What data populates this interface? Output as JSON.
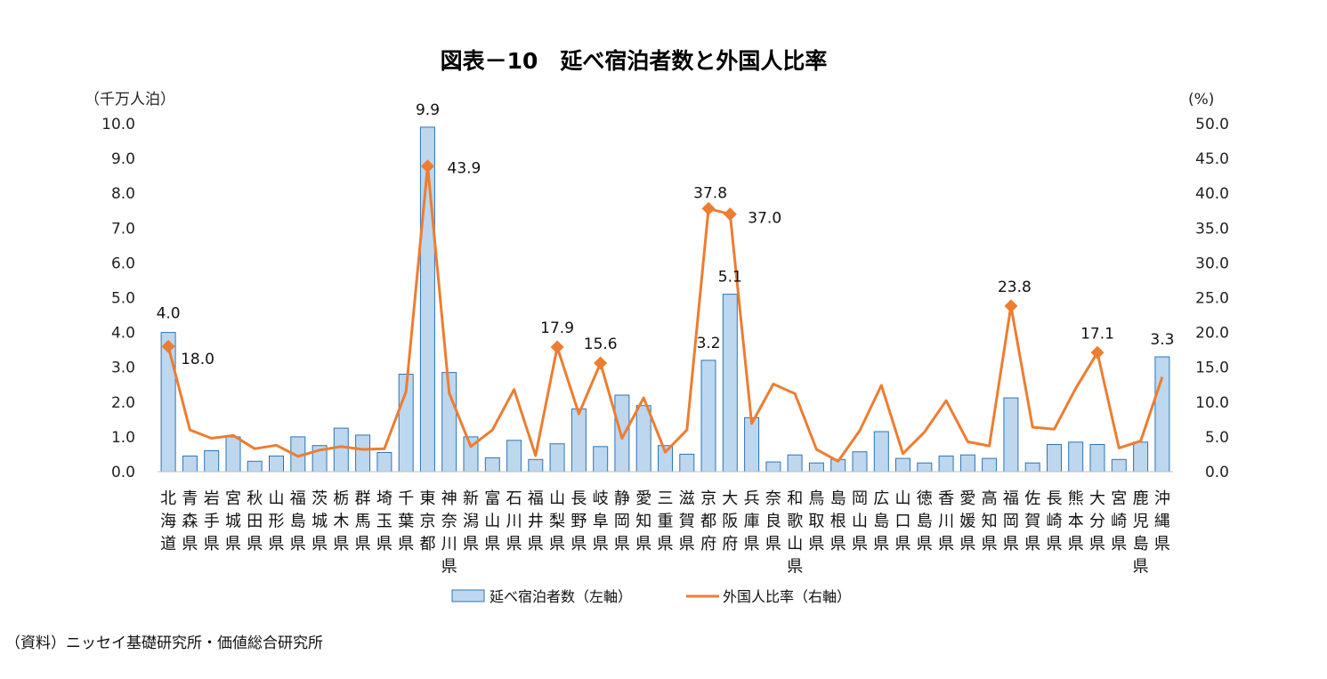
{
  "chart_data": {
    "type": "bar",
    "title": "図表－10　延べ宿泊者数と外国人比率",
    "y_left_unit": "（千万人泊）",
    "y_right_unit": "(%)",
    "y_left_ticks": [
      "0.0",
      "1.0",
      "2.0",
      "3.0",
      "4.0",
      "5.0",
      "6.0",
      "7.0",
      "8.0",
      "9.0",
      "10.0"
    ],
    "y_right_ticks": [
      "0.0",
      "5.0",
      "10.0",
      "15.0",
      "20.0",
      "25.0",
      "30.0",
      "35.0",
      "40.0",
      "45.0",
      "50.0"
    ],
    "ylim_left": [
      0,
      10
    ],
    "ylim_right": [
      0,
      50
    ],
    "grid": false,
    "legend_position": "bottom",
    "categories": [
      "北海道",
      "青森県",
      "岩手県",
      "宮城県",
      "秋田県",
      "山形県",
      "福島県",
      "茨城県",
      "栃木県",
      "群馬県",
      "埼玉県",
      "千葉県",
      "東京都",
      "神奈川県",
      "新潟県",
      "富山県",
      "石川県",
      "福井県",
      "山梨県",
      "長野県",
      "岐阜県",
      "静岡県",
      "愛知県",
      "三重県",
      "滋賀県",
      "京都府",
      "大阪府",
      "兵庫県",
      "奈良県",
      "和歌山県",
      "鳥取県",
      "島根県",
      "岡山県",
      "広島県",
      "山口県",
      "徳島県",
      "香川県",
      "愛媛県",
      "高知県",
      "福岡県",
      "佐賀県",
      "長崎県",
      "熊本県",
      "大分県",
      "宮崎県",
      "鹿児島県",
      "沖縄県"
    ],
    "series": [
      {
        "name": "延べ宿泊者数（左軸）",
        "type": "bar",
        "axis": "left",
        "color": "#BDD7EE",
        "stroke": "#2E75B6",
        "values": [
          4.0,
          0.45,
          0.6,
          1.0,
          0.3,
          0.45,
          1.0,
          0.75,
          1.25,
          1.05,
          0.55,
          2.8,
          9.9,
          2.85,
          1.0,
          0.4,
          0.9,
          0.35,
          0.8,
          1.8,
          0.72,
          2.2,
          1.9,
          0.75,
          0.5,
          3.2,
          5.1,
          1.55,
          0.28,
          0.48,
          0.25,
          0.35,
          0.57,
          1.15,
          0.38,
          0.25,
          0.45,
          0.48,
          0.38,
          2.12,
          0.25,
          0.78,
          0.85,
          0.78,
          0.35,
          0.85,
          3.3
        ]
      },
      {
        "name": "外国人比率（右軸）",
        "type": "line",
        "axis": "right",
        "color": "#ED7D31",
        "values": [
          18.0,
          6.0,
          4.8,
          5.2,
          3.3,
          3.8,
          2.2,
          3.1,
          3.6,
          3.2,
          3.3,
          11.5,
          43.9,
          11.3,
          3.6,
          6.0,
          11.8,
          2.3,
          17.9,
          8.3,
          15.6,
          4.8,
          10.6,
          2.8,
          6.0,
          37.8,
          37.0,
          6.9,
          12.6,
          11.2,
          3.2,
          1.5,
          5.9,
          12.4,
          2.6,
          5.7,
          10.2,
          4.3,
          3.7,
          23.8,
          6.4,
          6.1,
          12.0,
          17.1,
          3.4,
          4.4,
          13.6
        ]
      }
    ],
    "annotations": [
      {
        "series": 0,
        "index": 0,
        "text": "4.0"
      },
      {
        "series": 0,
        "index": 12,
        "text": "9.9"
      },
      {
        "series": 0,
        "index": 25,
        "text": "3.2"
      },
      {
        "series": 0,
        "index": 26,
        "text": "5.1"
      },
      {
        "series": 0,
        "index": 46,
        "text": "3.3"
      },
      {
        "series": 1,
        "index": 0,
        "text": "18.0"
      },
      {
        "series": 1,
        "index": 12,
        "text": "43.9"
      },
      {
        "series": 1,
        "index": 18,
        "text": "17.9"
      },
      {
        "series": 1,
        "index": 20,
        "text": "15.6"
      },
      {
        "series": 1,
        "index": 25,
        "text": "37.8"
      },
      {
        "series": 1,
        "index": 26,
        "text": "37.0"
      },
      {
        "series": 1,
        "index": 39,
        "text": "23.8"
      },
      {
        "series": 1,
        "index": 43,
        "text": "17.1"
      }
    ]
  },
  "footer": {
    "source": "（資料）ニッセイ基礎研究所・価値総合研究所"
  }
}
